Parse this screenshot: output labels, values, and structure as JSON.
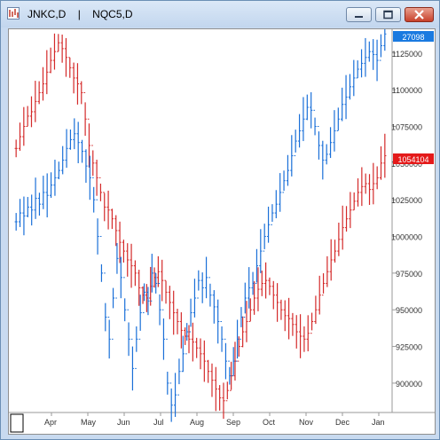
{
  "window": {
    "title_symbol1": "JNKC,D",
    "title_separator": "|",
    "title_symbol2": "NQC5,D",
    "buttons": [
      "minimize",
      "maximize",
      "close"
    ]
  },
  "chart_data": {
    "type": "bar",
    "series": [
      {
        "name": "JNKC,D",
        "color": "#d42a2a",
        "last_label": "1054104",
        "last_label_bg": "#e41a1a",
        "scale": "hidden"
      },
      {
        "name": "NQC5,D",
        "color": "#1a6fd8",
        "last_label": "27098",
        "last_label_bg": "#1a7ae0",
        "scale": "right"
      }
    ],
    "y_ticks": [
      "1125000",
      "1100000",
      "1075000",
      "1050000",
      "1025000",
      "1000000",
      "975000",
      "950000",
      "925000",
      "900000"
    ],
    "x_ticks": [
      "Apr",
      "May",
      "Jun",
      "Jul",
      "Aug",
      "Sep",
      "Oct",
      "Nov",
      "Dec",
      "Jan"
    ],
    "blue_y": [
      1010000,
      1016000,
      1014000,
      1020000,
      1018000,
      1026000,
      1022000,
      1030000,
      1028000,
      1035000,
      1040000,
      1045000,
      1052000,
      1060000,
      1066000,
      1070000,
      1064000,
      1058000,
      1048000,
      1040000,
      1025000,
      1000000,
      975000,
      945000,
      930000,
      958000,
      985000,
      972000,
      950000,
      930000,
      910000,
      930000,
      948000,
      962000,
      956000,
      975000,
      968000,
      950000,
      930000,
      900000,
      885000,
      892000,
      908000,
      920000,
      935000,
      948000,
      958000,
      970000,
      965000,
      972000,
      960000,
      952000,
      942000,
      930000,
      915000,
      905000,
      915000,
      930000,
      945000,
      958000,
      965000,
      968000,
      980000,
      990000,
      1000000,
      1008000,
      1016000,
      1022000,
      1030000,
      1038000,
      1045000,
      1055000,
      1065000,
      1072000,
      1080000,
      1088000,
      1086000,
      1075000,
      1062000,
      1052000,
      1056000,
      1064000,
      1072000,
      1080000,
      1090000,
      1095000,
      1102000,
      1108000,
      1114000,
      1118000,
      1122000,
      1126000,
      1124000,
      1120000,
      1130000,
      1138000
    ],
    "red_x": [
      "Apr",
      "May",
      "Jun",
      "Jul",
      "Aug",
      "Sep",
      "Oct",
      "Nov",
      "Dec",
      "Jan"
    ],
    "red_y": [
      1060000,
      1068000,
      1075000,
      1082000,
      1085000,
      1092000,
      1098000,
      1104000,
      1112000,
      1120000,
      1126000,
      1132000,
      1128000,
      1122000,
      1115000,
      1108000,
      1104000,
      1098000,
      1080000,
      1062000,
      1050000,
      1040000,
      1030000,
      1020000,
      1018000,
      1012000,
      1004000,
      996000,
      990000,
      984000,
      980000,
      975000,
      965000,
      960000,
      958000,
      966000,
      972000,
      976000,
      970000,
      962000,
      955000,
      948000,
      942000,
      936000,
      932000,
      930000,
      928000,
      924000,
      920000,
      915000,
      908000,
      902000,
      896000,
      890000,
      888000,
      895000,
      905000,
      915000,
      925000,
      935000,
      942000,
      950000,
      958000,
      964000,
      968000,
      970000,
      966000,
      960000,
      955000,
      950000,
      946000,
      944000,
      940000,
      935000,
      932000,
      930000,
      934000,
      942000,
      950000,
      960000,
      968000,
      976000,
      984000,
      990000,
      998000,
      1006000,
      1012000,
      1018000,
      1024000,
      1030000,
      1034000,
      1036000,
      1032000,
      1036000,
      1040000,
      1050000,
      1055000
    ],
    "note": ""
  }
}
